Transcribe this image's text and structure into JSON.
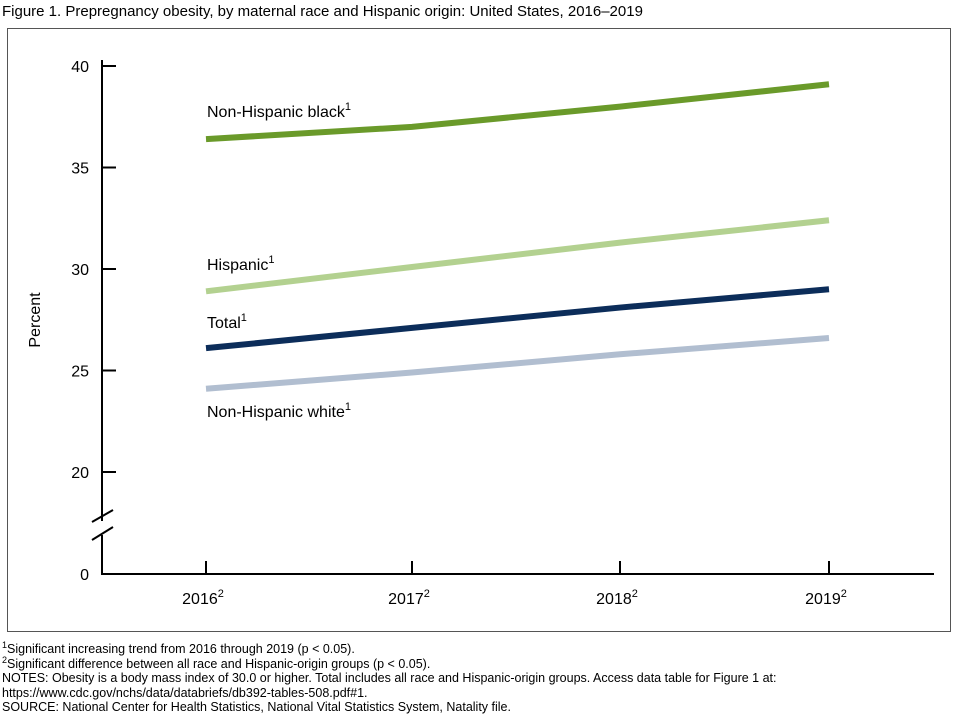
{
  "title": "Figure 1. Prepregnancy obesity, by maternal race and Hispanic origin: United States, 2016–2019",
  "chart_data": {
    "type": "line",
    "title": "Figure 1. Prepregnancy obesity, by maternal race and Hispanic origin: United States, 2016–2019",
    "xlabel": "",
    "ylabel": "Percent",
    "x": [
      "2016",
      "2017",
      "2018",
      "2019"
    ],
    "x_superscripts": [
      "2",
      "2",
      "2",
      "2"
    ],
    "yticks": [
      0,
      20,
      25,
      30,
      35,
      40
    ],
    "ylim": [
      0,
      40
    ],
    "axis_break": "between 0 and 20",
    "grid": false,
    "series": [
      {
        "name": "Non-Hispanic black",
        "sup": "1",
        "color": "#6a9a2a",
        "values": [
          36.4,
          37.0,
          38.0,
          39.1
        ]
      },
      {
        "name": "Hispanic",
        "sup": "1",
        "color": "#b3d190",
        "values": [
          28.9,
          30.1,
          31.3,
          32.4
        ]
      },
      {
        "name": "Total",
        "sup": "1",
        "color": "#0c2d5a",
        "values": [
          26.1,
          27.1,
          28.1,
          29.0
        ]
      },
      {
        "name": "Non-Hispanic white",
        "sup": "1",
        "color": "#b1bed0",
        "values": [
          24.1,
          24.9,
          25.8,
          26.6
        ]
      }
    ]
  },
  "notes": [
    {
      "sup": "1",
      "text": "Significant increasing trend from 2016 through 2019 (p < 0.05)."
    },
    {
      "sup": "2",
      "text": "Significant difference between all race and Hispanic-origin groups (p < 0.05)."
    },
    {
      "sup": "",
      "text": "NOTES: Obesity is a body mass index of 30.0 or higher. Total includes all race and Hispanic-origin groups. Access data table for Figure 1 at:"
    },
    {
      "sup": "",
      "text": "https://www.cdc.gov/nchs/data/databriefs/db392-tables-508.pdf#1."
    },
    {
      "sup": "",
      "text": "SOURCE: National Center for Health Statistics, National Vital Statistics System, Natality file."
    }
  ]
}
